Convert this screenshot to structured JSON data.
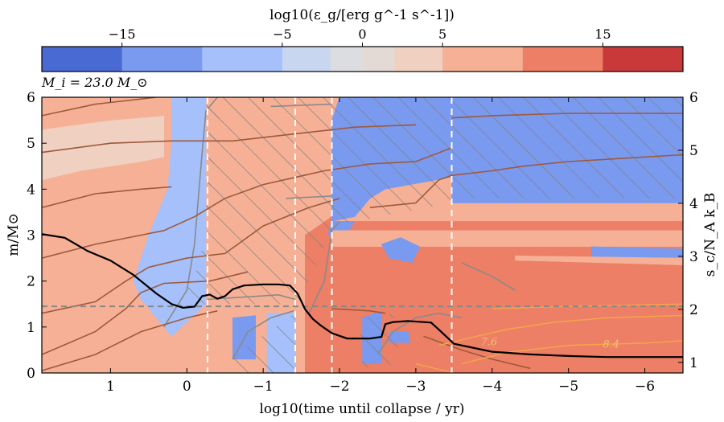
{
  "chart_data": {
    "type": "heatmap",
    "title": "",
    "annotation": "M_i = 23.0 M_⊙",
    "colorbar": {
      "label": "log10(ε_g/[erg g^-1 s^-1])",
      "ticks": [
        -15,
        -5,
        0,
        5,
        15
      ],
      "tick_labels": [
        "−15",
        "−5",
        "0",
        "5",
        "15"
      ],
      "range": [
        -20,
        20
      ],
      "bins": [
        {
          "from": -20,
          "to": -15,
          "color": "#4a6ad3"
        },
        {
          "from": -15,
          "to": -10,
          "color": "#7a9af0"
        },
        {
          "from": -10,
          "to": -5,
          "color": "#a5c0fb"
        },
        {
          "from": -5,
          "to": -2,
          "color": "#c8d6ef"
        },
        {
          "from": -2,
          "to": 0,
          "color": "#dcdde0"
        },
        {
          "from": 0,
          "to": 2,
          "color": "#e3dad6"
        },
        {
          "from": 2,
          "to": 5,
          "color": "#f0d0c0"
        },
        {
          "from": 5,
          "to": 10,
          "color": "#f6b096"
        },
        {
          "from": 10,
          "to": 15,
          "color": "#ec7f65"
        },
        {
          "from": 15,
          "to": 20,
          "color": "#c9393a"
        }
      ]
    },
    "xaxis": {
      "label": "log10(time until collapse / yr)",
      "range": [
        1.9,
        -6.5
      ],
      "ticks": [
        1,
        0,
        -1,
        -2,
        -3,
        -4,
        -5,
        -6
      ],
      "tick_labels": [
        "1",
        "0",
        "−1",
        "−2",
        "−3",
        "−4",
        "−5",
        "−6"
      ]
    },
    "yaxis": {
      "label": "m/M⊙",
      "range": [
        0,
        6
      ],
      "ticks": [
        0,
        1,
        2,
        3,
        4,
        5,
        6
      ],
      "tick_labels": [
        "0",
        "1",
        "2",
        "3",
        "4",
        "5",
        "6"
      ]
    },
    "y2axis": {
      "label": "s_c/N_A k_B",
      "range": [
        0.8,
        6
      ],
      "ticks": [
        1,
        2,
        3,
        4,
        5,
        6
      ],
      "tick_labels": [
        "1",
        "2",
        "3",
        "4",
        "5",
        "6"
      ]
    },
    "vertical_dashed_lines_x": [
      -0.27,
      -1.42,
      -1.9,
      -3.47
    ],
    "horizontal_dashed_line_y": 1.45,
    "regions": [
      {
        "color": "#f6b096",
        "pts": [
          [
            1.9,
            0
          ],
          [
            -6.5,
            0
          ],
          [
            -6.5,
            6
          ],
          [
            1.9,
            6
          ]
        ]
      },
      {
        "color": "#f0d0c0",
        "pts": [
          [
            1.9,
            4.2
          ],
          [
            1.4,
            4.4
          ],
          [
            0.6,
            4.6
          ],
          [
            0.3,
            4.7
          ],
          [
            0.3,
            6
          ],
          [
            1.9,
            6
          ]
        ]
      },
      {
        "color": "#f6b096",
        "pts": [
          [
            1.9,
            5.3
          ],
          [
            1.0,
            5.5
          ],
          [
            0.3,
            5.6
          ],
          [
            0.3,
            6
          ],
          [
            1.9,
            6
          ]
        ]
      },
      {
        "color": "#a5c0fb",
        "pts": [
          [
            0.4,
            1.5
          ],
          [
            0.2,
            2.3
          ],
          [
            0.05,
            3.2
          ],
          [
            -0.05,
            4.0
          ],
          [
            -0.1,
            5.0
          ],
          [
            -0.1,
            6
          ],
          [
            0.2,
            6
          ],
          [
            0.2,
            5.0
          ],
          [
            0.25,
            4.0
          ],
          [
            0.5,
            3.0
          ],
          [
            0.7,
            2.0
          ],
          [
            0.6,
            1.6
          ]
        ]
      },
      {
        "color": "#a5c0fb",
        "pts": [
          [
            0.2,
            0.8
          ],
          [
            -0.25,
            1.5
          ],
          [
            -0.25,
            6
          ],
          [
            0.2,
            6
          ],
          [
            0.2,
            3.5
          ],
          [
            0.6,
            1.6
          ]
        ]
      },
      {
        "color": "#7a9af0",
        "pts": [
          [
            -0.6,
            1.2
          ],
          [
            -0.9,
            1.25
          ],
          [
            -0.9,
            0.3
          ],
          [
            -0.6,
            0.3
          ]
        ]
      },
      {
        "color": "#a5c0fb",
        "pts": [
          [
            -1.05,
            1.3
          ],
          [
            -1.42,
            1.3
          ],
          [
            -1.42,
            0
          ],
          [
            -1.05,
            0
          ]
        ]
      },
      {
        "color": "#ec7f65",
        "pts": [
          [
            -1.9,
            3.3
          ],
          [
            -6.5,
            3.3
          ],
          [
            -6.5,
            0
          ],
          [
            -1.9,
            0
          ]
        ]
      },
      {
        "color": "#ec7f65",
        "pts": [
          [
            -1.55,
            3.0
          ],
          [
            -1.9,
            3.4
          ],
          [
            -1.9,
            0
          ],
          [
            -1.55,
            0
          ]
        ]
      },
      {
        "color": "#7a9af0",
        "pts": [
          [
            -1.9,
            3.3
          ],
          [
            -2.2,
            3.4
          ],
          [
            -2.4,
            3.8
          ],
          [
            -2.6,
            4.0
          ],
          [
            -3.6,
            4.3
          ],
          [
            -6.5,
            4.6
          ],
          [
            -6.5,
            6
          ],
          [
            -2.0,
            6
          ],
          [
            -1.9,
            5.5
          ]
        ]
      },
      {
        "color": "#7a9af0",
        "pts": [
          [
            -3.47,
            3.7
          ],
          [
            -6.5,
            3.7
          ],
          [
            -6.5,
            6
          ],
          [
            -3.47,
            6
          ]
        ]
      },
      {
        "color": "#7a9af0",
        "pts": [
          [
            -1.85,
            3.0
          ],
          [
            -2.1,
            3.05
          ],
          [
            -2.2,
            3.3
          ],
          [
            -1.9,
            3.3
          ]
        ]
      },
      {
        "color": "#f6b096",
        "pts": [
          [
            -1.9,
            3.1
          ],
          [
            -6.5,
            3.1
          ],
          [
            -6.5,
            2.75
          ],
          [
            -1.9,
            2.75
          ]
        ]
      },
      {
        "color": "#7a9af0",
        "pts": [
          [
            -2.3,
            1.2
          ],
          [
            -2.55,
            1.35
          ],
          [
            -2.55,
            0.2
          ],
          [
            -2.3,
            0.2
          ]
        ]
      },
      {
        "color": "#7a9af0",
        "pts": [
          [
            -2.55,
            2.8
          ],
          [
            -2.65,
            2.5
          ],
          [
            -2.95,
            2.4
          ],
          [
            -3.05,
            2.75
          ],
          [
            -2.8,
            2.95
          ]
        ]
      },
      {
        "color": "#7a9af0",
        "pts": [
          [
            -2.65,
            0.9
          ],
          [
            -2.9,
            0.9
          ],
          [
            -3.0,
            0
          ],
          [
            -2.65,
            0
          ]
        ]
      },
      {
        "color": "#7a9af0",
        "pts": [
          [
            -5.3,
            2.5
          ],
          [
            -6.5,
            2.45
          ],
          [
            -6.5,
            2.7
          ],
          [
            -5.3,
            2.75
          ]
        ]
      },
      {
        "color": "#f6b096",
        "pts": [
          [
            -4.3,
            2.45
          ],
          [
            -6.5,
            2.35
          ],
          [
            -6.5,
            2.5
          ],
          [
            -4.3,
            2.55
          ]
        ]
      },
      {
        "color": "#ec7f65",
        "pts": [
          [
            -2.6,
            0.65
          ],
          [
            -6.5,
            0.65
          ],
          [
            -6.5,
            0
          ],
          [
            -2.6,
            0
          ]
        ]
      }
    ],
    "hatched_regions": [
      {
        "pts": [
          [
            0.15,
            1.4
          ],
          [
            -0.1,
            2.1
          ],
          [
            -0.25,
            3.0
          ],
          [
            -0.35,
            4.5
          ],
          [
            -0.45,
            6
          ],
          [
            -0.25,
            6
          ],
          [
            -0.25,
            1.5
          ]
        ]
      },
      {
        "pts": [
          [
            -0.27,
            1.5
          ],
          [
            -1.42,
            1.5
          ],
          [
            -1.42,
            6
          ],
          [
            -0.27,
            6
          ]
        ]
      },
      {
        "pts": [
          [
            -1.42,
            1.4
          ],
          [
            -1.9,
            3.1
          ],
          [
            -1.95,
            6
          ],
          [
            -1.42,
            6
          ]
        ]
      },
      {
        "pts": [
          [
            -1.9,
            3.2
          ],
          [
            -3.47,
            3.7
          ],
          [
            -3.47,
            6
          ],
          [
            -1.95,
            6
          ]
        ]
      },
      {
        "pts": [
          [
            -3.47,
            3.8
          ],
          [
            -6.5,
            3.8
          ],
          [
            -6.5,
            6
          ],
          [
            -3.47,
            6
          ]
        ]
      },
      {
        "pts": [
          [
            -0.55,
            0.3
          ],
          [
            -1.42,
            1.3
          ],
          [
            -1.42,
            0
          ],
          [
            -0.55,
            0
          ]
        ]
      },
      {
        "pts": [
          [
            -2.25,
            1.2
          ],
          [
            -2.7,
            1.3
          ],
          [
            -2.8,
            0.2
          ],
          [
            -2.3,
            0.1
          ]
        ]
      }
    ],
    "contours_brown": [
      [
        [
          1.9,
          5.6
        ],
        [
          1.2,
          5.85
        ],
        [
          0.4,
          6.0
        ]
      ],
      [
        [
          1.9,
          4.8
        ],
        [
          1.0,
          5.0
        ],
        [
          0.2,
          5.05
        ],
        [
          -0.6,
          5.05
        ],
        [
          -1.4,
          5.2
        ],
        [
          -2.2,
          5.35
        ],
        [
          -3.0,
          5.4
        ]
      ],
      [
        [
          1.9,
          3.6
        ],
        [
          1.2,
          3.9
        ],
        [
          0.6,
          4.0
        ],
        [
          0.2,
          4.05
        ]
      ],
      [
        [
          1.9,
          2.5
        ],
        [
          1.2,
          2.8
        ],
        [
          0.6,
          3.0
        ],
        [
          0.3,
          3.1
        ],
        [
          -0.1,
          3.4
        ],
        [
          -0.5,
          3.8
        ],
        [
          -1.0,
          4.1
        ],
        [
          -1.8,
          4.4
        ],
        [
          -2.4,
          4.55
        ],
        [
          -3.0,
          4.6
        ],
        [
          -3.47,
          4.9
        ]
      ],
      [
        [
          1.9,
          1.3
        ],
        [
          1.2,
          1.55
        ],
        [
          0.8,
          2.0
        ],
        [
          0.5,
          2.3
        ],
        [
          0.25,
          2.4
        ],
        [
          0.0,
          2.5
        ],
        [
          -0.5,
          2.6
        ],
        [
          -1.0,
          3.2
        ],
        [
          -1.6,
          3.6
        ],
        [
          -2.0,
          3.8
        ]
      ],
      [
        [
          1.9,
          0.4
        ],
        [
          1.2,
          0.9
        ],
        [
          0.8,
          1.4
        ],
        [
          0.6,
          1.75
        ],
        [
          0.3,
          1.95
        ],
        [
          -0.3,
          2.0
        ],
        [
          -0.8,
          2.2
        ]
      ],
      [
        [
          1.9,
          0.05
        ],
        [
          1.2,
          0.4
        ],
        [
          0.6,
          0.9
        ],
        [
          0.0,
          1.2
        ],
        [
          -0.4,
          1.35
        ]
      ],
      [
        [
          -2.4,
          3.6
        ],
        [
          -3.0,
          3.7
        ],
        [
          -3.3,
          4.2
        ],
        [
          -3.47,
          4.3
        ],
        [
          -4.0,
          4.4
        ],
        [
          -4.4,
          4.5
        ],
        [
          -5.0,
          4.6
        ],
        [
          -6.5,
          4.75
        ]
      ],
      [
        [
          -3.47,
          5.55
        ],
        [
          -4.0,
          5.6
        ],
        [
          -5.0,
          5.65
        ],
        [
          -6.5,
          5.65
        ]
      ],
      [
        [
          -1.9,
          1.4
        ],
        [
          -2.4,
          1.35
        ],
        [
          -2.6,
          1.3
        ]
      ],
      [
        [
          -3.1,
          0.8
        ],
        [
          -3.6,
          0.5
        ],
        [
          -4.0,
          0.3
        ],
        [
          -4.5,
          0.1
        ]
      ]
    ],
    "contours_orange": [
      [
        [
          -3.3,
          0.6
        ],
        [
          -3.8,
          0.8
        ],
        [
          -4.2,
          0.95
        ],
        [
          -4.8,
          1.1
        ],
        [
          -5.5,
          1.2
        ],
        [
          -6.5,
          1.25
        ]
      ],
      [
        [
          -3.6,
          0.2
        ],
        [
          -4.2,
          0.45
        ],
        [
          -5.0,
          0.6
        ],
        [
          -6.0,
          0.65
        ],
        [
          -6.5,
          0.7
        ]
      ],
      [
        [
          -3.0,
          0.2
        ],
        [
          -3.5,
          0.0
        ]
      ],
      [
        [
          -4.0,
          1.4
        ],
        [
          -5.0,
          1.45
        ],
        [
          -6.5,
          1.5
        ]
      ]
    ],
    "contour_labels": [
      {
        "text": "8.4",
        "x": -5.45,
        "y": 0.55
      },
      {
        "text": "7.6",
        "x": -3.85,
        "y": 0.6
      }
    ],
    "grey_contours": [
      [
        [
          0.3,
          1.0
        ],
        [
          0.0,
          1.8
        ],
        [
          -0.1,
          2.8
        ],
        [
          -0.15,
          3.8
        ],
        [
          -0.2,
          4.8
        ],
        [
          -0.25,
          5.7
        ],
        [
          -0.4,
          6.0
        ]
      ],
      [
        [
          -0.27,
          1.6
        ],
        [
          -1.2,
          1.7
        ],
        [
          -1.42,
          1.6
        ]
      ],
      [
        [
          -1.6,
          1.3
        ],
        [
          -1.8,
          2.0
        ],
        [
          -1.9,
          3.1
        ],
        [
          -2.0,
          3.3
        ]
      ],
      [
        [
          -1.3,
          3.8
        ],
        [
          -1.9,
          3.85
        ]
      ],
      [
        [
          -1.1,
          5.8
        ],
        [
          -1.9,
          5.85
        ]
      ],
      [
        [
          -2.5,
          0.4
        ],
        [
          -2.7,
          0.9
        ],
        [
          -3.0,
          1.2
        ],
        [
          -3.3,
          1.3
        ],
        [
          -3.6,
          1.2
        ]
      ],
      [
        [
          -3.6,
          2.4
        ],
        [
          -4.0,
          2.1
        ],
        [
          -4.3,
          1.8
        ]
      ],
      [
        [
          -0.6,
          0.3
        ],
        [
          -0.8,
          0.9
        ],
        [
          -1.1,
          1.2
        ],
        [
          -1.4,
          1.35
        ]
      ]
    ],
    "series": [
      {
        "axis": "right",
        "color": "#000000",
        "x": [
          1.9,
          1.6,
          1.3,
          1.0,
          0.7,
          0.4,
          0.2,
          0.05,
          -0.1,
          -0.2,
          -0.3,
          -0.4,
          -0.5,
          -0.6,
          -0.75,
          -1.0,
          -1.2,
          -1.35,
          -1.45,
          -1.55,
          -1.65,
          -1.75,
          -1.9,
          -2.1,
          -2.4,
          -2.55,
          -2.6,
          -2.7,
          -2.9,
          -3.2,
          -3.3,
          -3.5,
          -4.0,
          -4.5,
          -5.0,
          -5.5,
          -6.0,
          -6.5
        ],
        "y": [
          3.42,
          3.35,
          3.1,
          2.92,
          2.65,
          2.3,
          2.1,
          2.03,
          2.05,
          2.25,
          2.28,
          2.2,
          2.25,
          2.38,
          2.45,
          2.47,
          2.47,
          2.45,
          2.3,
          2.0,
          1.82,
          1.7,
          1.55,
          1.45,
          1.45,
          1.48,
          1.72,
          1.76,
          1.78,
          1.75,
          1.62,
          1.35,
          1.2,
          1.15,
          1.12,
          1.1,
          1.1,
          1.1
        ]
      }
    ]
  }
}
